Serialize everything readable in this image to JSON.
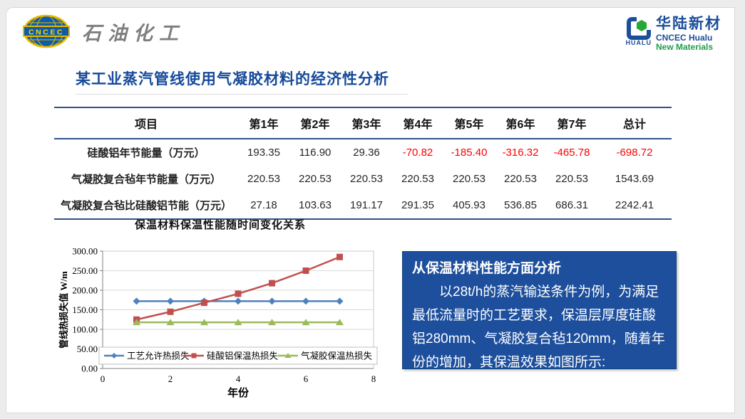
{
  "header": {
    "left_logo": {
      "emblem_text": "CNCEC",
      "brand_text": "石油化工"
    },
    "right_logo": {
      "icon_word": "HUALU",
      "cn_name": "华陆新材",
      "en_line1": "CNCEC Hualu",
      "en_line2": "New Materials"
    }
  },
  "title": "某工业蒸汽管线使用气凝胶材料的经济性分析",
  "table": {
    "columns": [
      "项目",
      "第1年",
      "第2年",
      "第3年",
      "第4年",
      "第5年",
      "第6年",
      "第7年",
      "总计"
    ],
    "rows": [
      {
        "label": "硅酸铝年节能量（万元）",
        "values": [
          "193.35",
          "116.90",
          "29.36",
          "-70.82",
          "-185.40",
          "-316.32",
          "-465.78",
          "-698.72"
        ]
      },
      {
        "label": "气凝胶复合毡年节能量（万元）",
        "values": [
          "220.53",
          "220.53",
          "220.53",
          "220.53",
          "220.53",
          "220.53",
          "220.53",
          "1543.69"
        ]
      },
      {
        "label": "气凝胶复合毡比硅酸铝节能（万元）",
        "values": [
          "27.18",
          "103.63",
          "191.17",
          "291.35",
          "405.93",
          "536.85",
          "686.31",
          "2242.41"
        ]
      }
    ],
    "negative_color": "#ff0000"
  },
  "chart_data": {
    "type": "line",
    "title": "保温材料保温性能随时间变化关系",
    "xlabel": "年份",
    "ylabel": "管线热损失值 W/m",
    "x": [
      1,
      2,
      3,
      4,
      5,
      6,
      7
    ],
    "xlim": [
      0,
      8
    ],
    "x_ticks": [
      0,
      2,
      4,
      6,
      8
    ],
    "ylim": [
      0,
      300
    ],
    "y_ticks": [
      "0.00",
      "50.00",
      "100.00",
      "150.00",
      "200.00",
      "250.00",
      "300.00"
    ],
    "grid": true,
    "legend_position": "bottom-inside",
    "series": [
      {
        "name": "工艺允许热损失",
        "marker": "diamond",
        "color": "#4f81bd",
        "values": [
          172,
          172,
          172,
          172,
          172,
          172,
          172
        ]
      },
      {
        "name": "硅酸铝保温热损失",
        "marker": "square",
        "color": "#c0504d",
        "values": [
          125,
          145,
          168,
          191,
          218,
          250,
          285
        ]
      },
      {
        "name": "气凝胶保温热损失",
        "marker": "triangle",
        "color": "#9bbb59",
        "values": [
          118,
          118,
          118,
          118,
          118,
          118,
          118
        ]
      }
    ]
  },
  "analysis_box": {
    "heading": "从保温材料性能方面分析",
    "body": "以28t/h的蒸汽输送条件为例，为满足最低流量时的工艺要求，保温层厚度硅酸铝280mm、气凝胶复合毡120mm，随着年份的增加，其保温效果如图所示:"
  },
  "colors": {
    "title_blue": "#164a9a",
    "table_border": "#31518b",
    "analysis_bg": "#1d4f9d",
    "logo_blue": "#1b4e9b",
    "logo_green": "#1f9e4b",
    "brand_gray": "#7f7f7f"
  }
}
